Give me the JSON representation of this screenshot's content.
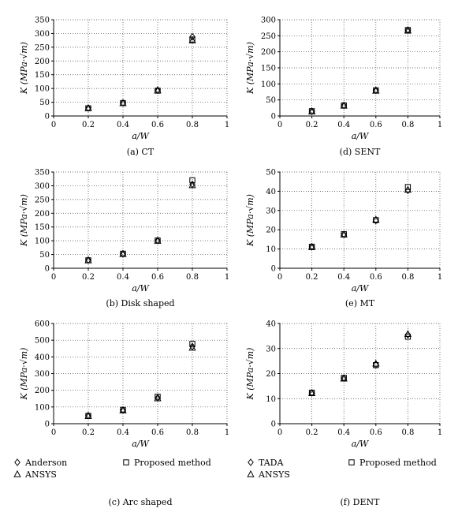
{
  "chart_data": [
    {
      "type": "scatter",
      "caption": "(a) CT",
      "xlabel": "a/W",
      "ylabel": "K (MPa·√m)",
      "xlim": [
        0,
        1
      ],
      "ylim": [
        0,
        350
      ],
      "x_ticks": [
        "0",
        "0.2",
        "0.4",
        "0.6",
        "0.8",
        "1"
      ],
      "y_ticks": [
        "0",
        "50",
        "100",
        "150",
        "200",
        "250",
        "300",
        "350"
      ],
      "grid": "dotted",
      "series": [
        {
          "name": "Anderson",
          "marker": "diamond",
          "x": [
            0.2,
            0.4,
            0.6,
            0.8
          ],
          "y": [
            29,
            48,
            94,
            288
          ]
        },
        {
          "name": "ANSYS",
          "marker": "triangle",
          "x": [
            0.2,
            0.4,
            0.6,
            0.8
          ],
          "y": [
            28,
            47,
            93,
            275
          ]
        },
        {
          "name": "Proposed method",
          "marker": "square",
          "x": [
            0.2,
            0.4,
            0.6,
            0.8
          ],
          "y": [
            28,
            47,
            92,
            278
          ]
        }
      ]
    },
    {
      "type": "scatter",
      "caption": "(b) Disk shaped",
      "xlabel": "a/W",
      "ylabel": "K (MPa·√m)",
      "xlim": [
        0,
        1
      ],
      "ylim": [
        0,
        350
      ],
      "x_ticks": [
        "0",
        "0.2",
        "0.4",
        "0.6",
        "0.8",
        "1"
      ],
      "y_ticks": [
        "0",
        "50",
        "100",
        "150",
        "200",
        "250",
        "300",
        "350"
      ],
      "grid": "dotted",
      "series": [
        {
          "name": "Anderson",
          "marker": "diamond",
          "x": [
            0.2,
            0.4,
            0.6,
            0.8
          ],
          "y": [
            30,
            53,
            101,
            305
          ]
        },
        {
          "name": "ANSYS",
          "marker": "triangle",
          "x": [
            0.2,
            0.4,
            0.6,
            0.8
          ],
          "y": [
            29,
            52,
            100,
            302
          ]
        },
        {
          "name": "Proposed method",
          "marker": "square",
          "x": [
            0.2,
            0.4,
            0.6,
            0.8
          ],
          "y": [
            29,
            53,
            101,
            320
          ]
        }
      ]
    },
    {
      "type": "scatter",
      "caption": "(c) Arc shaped",
      "xlabel": "a/W",
      "ylabel": "K (MPa·√m)",
      "xlim": [
        0,
        1
      ],
      "ylim": [
        0,
        600
      ],
      "x_ticks": [
        "0",
        "0.2",
        "0.4",
        "0.6",
        "0.8",
        "1"
      ],
      "y_ticks": [
        "0",
        "100",
        "200",
        "300",
        "400",
        "500",
        "600"
      ],
      "grid": "dotted",
      "series": [
        {
          "name": "Anderson",
          "marker": "diamond",
          "x": [
            0.2,
            0.4,
            0.6,
            0.8
          ],
          "y": [
            48,
            82,
            155,
            462
          ]
        },
        {
          "name": "ANSYS",
          "marker": "triangle",
          "x": [
            0.2,
            0.4,
            0.6,
            0.8
          ],
          "y": [
            46,
            80,
            152,
            455
          ]
        },
        {
          "name": "Proposed method",
          "marker": "square",
          "x": [
            0.2,
            0.4,
            0.6,
            0.8
          ],
          "y": [
            47,
            83,
            162,
            478
          ]
        }
      ]
    },
    {
      "type": "scatter",
      "caption": "(d) SENT",
      "xlabel": "a/W",
      "ylabel": "K (MPa·√m)",
      "xlim": [
        0,
        1
      ],
      "ylim": [
        0,
        300
      ],
      "x_ticks": [
        "0",
        "0.2",
        "0.4",
        "0.6",
        "0.8",
        "1"
      ],
      "y_ticks": [
        "0",
        "50",
        "100",
        "150",
        "200",
        "250",
        "300"
      ],
      "grid": "dotted",
      "series": [
        {
          "name": "TADA",
          "marker": "diamond",
          "x": [
            0.2,
            0.4,
            0.6,
            0.8
          ],
          "y": [
            15,
            33,
            80,
            268
          ]
        },
        {
          "name": "ANSYS",
          "marker": "triangle",
          "x": [
            0.2,
            0.4,
            0.6,
            0.8
          ],
          "y": [
            14,
            32,
            79,
            266
          ]
        },
        {
          "name": "Proposed method",
          "marker": "square",
          "x": [
            0.2,
            0.4,
            0.6,
            0.8
          ],
          "y": [
            15,
            33,
            80,
            268
          ]
        }
      ]
    },
    {
      "type": "scatter",
      "caption": "(e) MT",
      "xlabel": "a/W",
      "ylabel": "K (MPa·√m)",
      "xlim": [
        0,
        1
      ],
      "ylim": [
        0,
        50
      ],
      "x_ticks": [
        "0",
        "0.2",
        "0.4",
        "0.6",
        "0.8",
        "1"
      ],
      "y_ticks": [
        "0",
        "10",
        "20",
        "30",
        "40",
        "50"
      ],
      "grid": "dotted",
      "series": [
        {
          "name": "TADA",
          "marker": "diamond",
          "x": [
            0.2,
            0.4,
            0.6,
            0.8
          ],
          "y": [
            11.2,
            17.6,
            24.8,
            40.5
          ]
        },
        {
          "name": "ANSYS",
          "marker": "triangle",
          "x": [
            0.2,
            0.4,
            0.6,
            0.8
          ],
          "y": [
            11.0,
            17.5,
            25.3,
            40.8
          ]
        },
        {
          "name": "Proposed method",
          "marker": "square",
          "x": [
            0.2,
            0.4,
            0.6,
            0.8
          ],
          "y": [
            11.2,
            17.7,
            25.0,
            42.2
          ]
        }
      ]
    },
    {
      "type": "scatter",
      "caption": "(f) DENT",
      "xlabel": "a/W",
      "ylabel": "K (MPa·√m)",
      "xlim": [
        0,
        1
      ],
      "ylim": [
        0,
        40
      ],
      "x_ticks": [
        "0",
        "0.2",
        "0.4",
        "0.6",
        "0.8",
        "1"
      ],
      "y_ticks": [
        "0",
        "10",
        "20",
        "30",
        "40"
      ],
      "grid": "dotted",
      "series": [
        {
          "name": "TADA",
          "marker": "diamond",
          "x": [
            0.2,
            0.4,
            0.6,
            0.8
          ],
          "y": [
            12.3,
            18.2,
            23.5,
            35.5
          ]
        },
        {
          "name": "ANSYS",
          "marker": "triangle",
          "x": [
            0.2,
            0.4,
            0.6,
            0.8
          ],
          "y": [
            12.2,
            18.0,
            24.0,
            35.8
          ]
        },
        {
          "name": "Proposed method",
          "marker": "square",
          "x": [
            0.2,
            0.4,
            0.6,
            0.8
          ],
          "y": [
            12.4,
            18.3,
            23.4,
            34.7
          ]
        }
      ]
    }
  ],
  "legends": [
    {
      "items": [
        {
          "label": "Anderson",
          "marker": "diamond"
        },
        {
          "label": "Proposed method",
          "marker": "square"
        },
        {
          "label": "ANSYS",
          "marker": "triangle"
        }
      ]
    },
    {
      "items": [
        {
          "label": "TADA",
          "marker": "diamond"
        },
        {
          "label": "Proposed method",
          "marker": "square"
        },
        {
          "label": "ANSYS",
          "marker": "triangle"
        }
      ]
    }
  ]
}
